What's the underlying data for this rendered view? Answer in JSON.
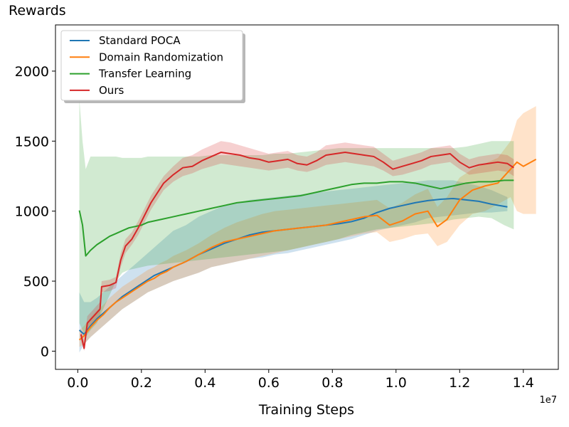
{
  "chart_data": {
    "type": "line",
    "title": "",
    "ylabel": "Rewards",
    "xlabel": "Training Steps",
    "x_offset_label": "1e7",
    "xlim": [
      -0.07,
      1.51
    ],
    "ylim": [
      -130,
      2330
    ],
    "xticks": [
      0.0,
      0.2,
      0.4,
      0.6,
      0.8,
      1.0,
      1.2,
      1.4
    ],
    "xtick_labels": [
      "0.0",
      "0.2",
      "0.4",
      "0.6",
      "0.8",
      "1.0",
      "1.2",
      "1.4"
    ],
    "yticks": [
      0,
      500,
      1000,
      1500,
      2000
    ],
    "ytick_labels": [
      "0",
      "500",
      "1000",
      "1500",
      "2000"
    ],
    "legend_position": "top-left",
    "series": [
      {
        "name": "Standard POCA",
        "color": "#1f77b4",
        "x": [
          0.005,
          0.02,
          0.04,
          0.06,
          0.08,
          0.1,
          0.12,
          0.14,
          0.16,
          0.18,
          0.2,
          0.22,
          0.24,
          0.26,
          0.28,
          0.3,
          0.34,
          0.38,
          0.42,
          0.46,
          0.5,
          0.54,
          0.58,
          0.62,
          0.66,
          0.7,
          0.74,
          0.78,
          0.82,
          0.86,
          0.9,
          0.94,
          0.98,
          1.02,
          1.06,
          1.1,
          1.14,
          1.18,
          1.22,
          1.26,
          1.3,
          1.35
        ],
        "y": [
          150,
          120,
          180,
          230,
          270,
          310,
          350,
          390,
          420,
          450,
          480,
          510,
          540,
          560,
          580,
          600,
          640,
          690,
          730,
          770,
          800,
          830,
          850,
          860,
          870,
          880,
          890,
          900,
          910,
          925,
          950,
          990,
          1020,
          1040,
          1060,
          1075,
          1085,
          1090,
          1080,
          1070,
          1050,
          1030
        ],
        "band_low": [
          -10,
          50,
          100,
          140,
          180,
          220,
          260,
          300,
          330,
          360,
          390,
          420,
          440,
          460,
          480,
          500,
          530,
          560,
          600,
          620,
          640,
          660,
          670,
          690,
          700,
          720,
          740,
          760,
          780,
          800,
          830,
          860,
          880,
          900,
          920,
          950,
          960,
          970,
          980,
          990,
          990,
          1000
        ],
        "band_high": [
          420,
          350,
          350,
          380,
          420,
          460,
          500,
          540,
          580,
          620,
          660,
          700,
          740,
          780,
          820,
          860,
          900,
          960,
          1000,
          1040,
          1060,
          1080,
          1090,
          1100,
          1110,
          1120,
          1130,
          1140,
          1150,
          1160,
          1170,
          1180,
          1190,
          1200,
          1210,
          1220,
          1220,
          1220,
          1200,
          1180,
          1150,
          1100
        ]
      },
      {
        "name": "Domain Randomization",
        "color": "#ff7f0e",
        "x": [
          0.005,
          0.02,
          0.04,
          0.06,
          0.08,
          0.1,
          0.12,
          0.14,
          0.16,
          0.18,
          0.2,
          0.22,
          0.24,
          0.26,
          0.28,
          0.3,
          0.34,
          0.38,
          0.42,
          0.46,
          0.5,
          0.54,
          0.58,
          0.62,
          0.66,
          0.7,
          0.74,
          0.78,
          0.82,
          0.86,
          0.9,
          0.94,
          0.98,
          1.02,
          1.06,
          1.1,
          1.13,
          1.16,
          1.2,
          1.24,
          1.28,
          1.32,
          1.36,
          1.38,
          1.4,
          1.44
        ],
        "y": [
          80,
          110,
          170,
          220,
          260,
          310,
          350,
          380,
          410,
          440,
          470,
          500,
          520,
          550,
          570,
          600,
          640,
          690,
          740,
          780,
          800,
          820,
          840,
          860,
          870,
          880,
          890,
          900,
          920,
          940,
          960,
          970,
          900,
          930,
          980,
          1000,
          890,
          940,
          1080,
          1150,
          1180,
          1200,
          1300,
          1350,
          1320,
          1370
        ],
        "band_low": [
          30,
          50,
          100,
          140,
          180,
          220,
          260,
          300,
          330,
          360,
          390,
          420,
          440,
          460,
          480,
          500,
          530,
          560,
          600,
          620,
          640,
          660,
          680,
          700,
          720,
          740,
          760,
          780,
          800,
          820,
          840,
          850,
          780,
          800,
          830,
          840,
          750,
          780,
          900,
          980,
          1000,
          1050,
          1100,
          1000,
          980,
          980
        ],
        "band_high": [
          150,
          180,
          240,
          290,
          330,
          380,
          420,
          460,
          490,
          520,
          550,
          580,
          600,
          630,
          650,
          680,
          720,
          770,
          830,
          880,
          920,
          950,
          980,
          1000,
          1010,
          1020,
          1030,
          1040,
          1050,
          1060,
          1070,
          1080,
          1020,
          1060,
          1120,
          1160,
          1030,
          1100,
          1240,
          1300,
          1340,
          1380,
          1500,
          1650,
          1700,
          1750
        ]
      },
      {
        "name": "Transfer Learning",
        "color": "#2ca02c",
        "x": [
          0.005,
          0.015,
          0.025,
          0.04,
          0.06,
          0.08,
          0.1,
          0.12,
          0.14,
          0.16,
          0.18,
          0.2,
          0.22,
          0.26,
          0.3,
          0.34,
          0.38,
          0.42,
          0.46,
          0.5,
          0.54,
          0.58,
          0.62,
          0.66,
          0.7,
          0.74,
          0.78,
          0.82,
          0.86,
          0.9,
          0.94,
          0.98,
          1.02,
          1.06,
          1.1,
          1.14,
          1.18,
          1.22,
          1.26,
          1.3,
          1.34,
          1.37
        ],
        "y": [
          1005,
          900,
          680,
          720,
          760,
          790,
          820,
          840,
          860,
          880,
          890,
          900,
          920,
          940,
          960,
          980,
          1000,
          1020,
          1040,
          1060,
          1070,
          1080,
          1090,
          1100,
          1110,
          1130,
          1150,
          1170,
          1190,
          1200,
          1200,
          1210,
          1210,
          1200,
          1180,
          1160,
          1180,
          1200,
          1210,
          1210,
          1220,
          1220
        ],
        "band_low": [
          200,
          150,
          100,
          150,
          200,
          300,
          400,
          500,
          560,
          580,
          590,
          600,
          610,
          620,
          630,
          640,
          650,
          660,
          670,
          680,
          690,
          700,
          710,
          720,
          740,
          760,
          780,
          800,
          830,
          850,
          870,
          880,
          890,
          900,
          910,
          920,
          940,
          950,
          960,
          950,
          900,
          870
        ],
        "band_high": [
          1800,
          1500,
          1300,
          1390,
          1390,
          1390,
          1390,
          1390,
          1380,
          1380,
          1380,
          1380,
          1390,
          1390,
          1390,
          1390,
          1390,
          1400,
          1400,
          1400,
          1400,
          1400,
          1410,
          1410,
          1420,
          1430,
          1440,
          1450,
          1450,
          1450,
          1450,
          1450,
          1450,
          1450,
          1450,
          1450,
          1450,
          1460,
          1480,
          1500,
          1500,
          1500
        ]
      },
      {
        "name": "Ours",
        "color": "#d62728",
        "x": [
          0.01,
          0.02,
          0.03,
          0.05,
          0.07,
          0.075,
          0.1,
          0.12,
          0.135,
          0.15,
          0.17,
          0.19,
          0.21,
          0.23,
          0.25,
          0.27,
          0.3,
          0.33,
          0.36,
          0.39,
          0.42,
          0.45,
          0.48,
          0.51,
          0.54,
          0.57,
          0.6,
          0.63,
          0.66,
          0.69,
          0.72,
          0.75,
          0.78,
          0.81,
          0.84,
          0.87,
          0.9,
          0.93,
          0.96,
          0.99,
          1.02,
          1.05,
          1.08,
          1.11,
          1.14,
          1.17,
          1.2,
          1.23,
          1.26,
          1.29,
          1.32,
          1.35,
          1.37
        ],
        "y": [
          120,
          20,
          200,
          250,
          300,
          460,
          470,
          490,
          650,
          750,
          800,
          880,
          970,
          1060,
          1130,
          1200,
          1260,
          1310,
          1320,
          1360,
          1390,
          1420,
          1410,
          1400,
          1380,
          1370,
          1350,
          1360,
          1370,
          1340,
          1330,
          1360,
          1400,
          1410,
          1420,
          1410,
          1400,
          1390,
          1350,
          1300,
          1320,
          1340,
          1360,
          1390,
          1400,
          1410,
          1350,
          1310,
          1330,
          1340,
          1350,
          1340,
          1310
        ],
        "band_low": [
          80,
          0,
          150,
          200,
          250,
          420,
          430,
          450,
          600,
          700,
          760,
          830,
          920,
          1010,
          1080,
          1150,
          1210,
          1250,
          1270,
          1300,
          1320,
          1340,
          1330,
          1320,
          1310,
          1300,
          1290,
          1300,
          1310,
          1290,
          1280,
          1300,
          1330,
          1340,
          1350,
          1340,
          1330,
          1320,
          1290,
          1250,
          1260,
          1280,
          1300,
          1330,
          1340,
          1350,
          1300,
          1260,
          1270,
          1280,
          1290,
          1280,
          1250
        ],
        "band_high": [
          160,
          60,
          250,
          300,
          350,
          500,
          510,
          530,
          700,
          800,
          850,
          930,
          1020,
          1110,
          1180,
          1250,
          1320,
          1380,
          1400,
          1440,
          1470,
          1500,
          1490,
          1470,
          1450,
          1430,
          1410,
          1420,
          1430,
          1400,
          1390,
          1420,
          1470,
          1480,
          1490,
          1480,
          1470,
          1460,
          1410,
          1360,
          1380,
          1400,
          1420,
          1450,
          1460,
          1470,
          1410,
          1370,
          1390,
          1400,
          1410,
          1400,
          1370
        ]
      }
    ]
  }
}
